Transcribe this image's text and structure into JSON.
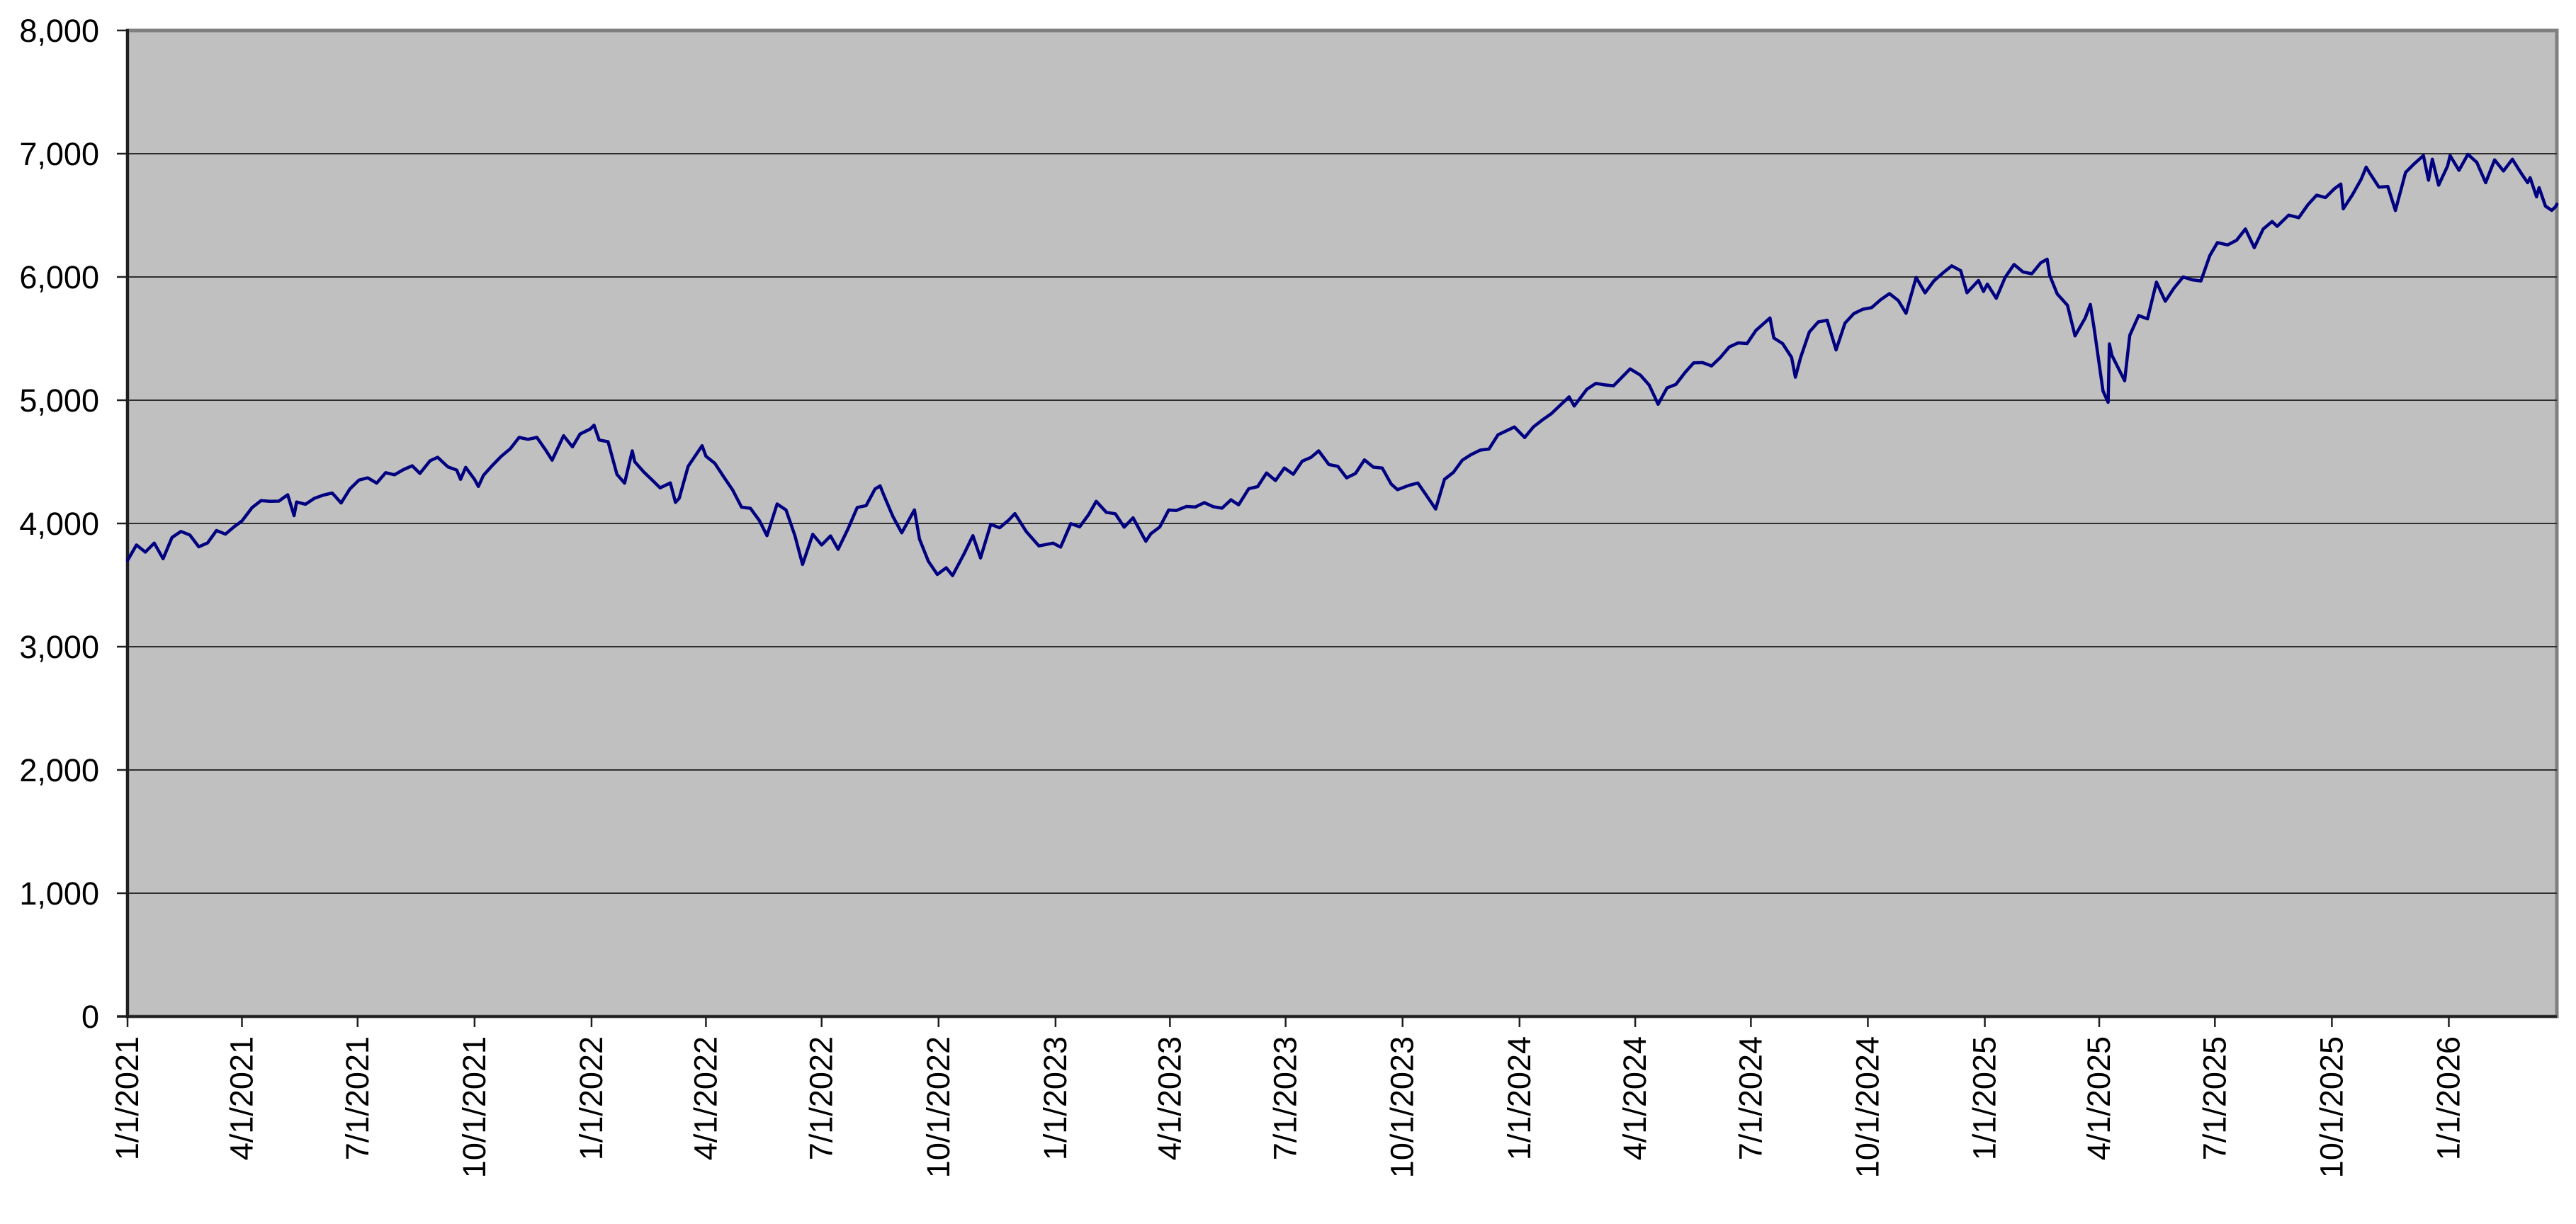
{
  "style": {
    "page_bg": "#ffffff",
    "plot_bg": "#c0c0c0",
    "plot_border": "#808080",
    "grid_color": "#2e2e2e",
    "axis_color": "#1f1f1f",
    "tick_color": "#1f1f1f",
    "label_color": "#000000",
    "line_color": "#000080"
  },
  "chart_data": {
    "type": "line",
    "title": "",
    "legend": "none",
    "grid": "horizontal",
    "x_domain": [
      "1/1/2021",
      "3/27/2026"
    ],
    "ylim": [
      0,
      8000
    ],
    "y_tick_values": [
      0,
      1000,
      2000,
      3000,
      4000,
      5000,
      6000,
      7000,
      8000
    ],
    "y_tick_labels": [
      "0",
      "1,000",
      "2,000",
      "3,000",
      "4,000",
      "5,000",
      "6,000",
      "7,000",
      "8,000"
    ],
    "x_tick_labels": [
      "1/1/2021",
      "4/1/2021",
      "7/1/2021",
      "10/1/2021",
      "1/1/2022",
      "4/1/2022",
      "7/1/2022",
      "10/1/2022",
      "1/1/2023",
      "4/1/2023",
      "7/1/2023",
      "10/1/2023",
      "1/1/2024",
      "4/1/2024",
      "7/1/2024",
      "10/1/2024",
      "1/1/2025",
      "4/1/2025",
      "7/1/2025",
      "10/1/2025",
      "1/1/2026"
    ],
    "points": [
      [
        "1/1/2021",
        3700
      ],
      [
        "1/8/2021",
        3825
      ],
      [
        "1/15/2021",
        3768
      ],
      [
        "1/22/2021",
        3841
      ],
      [
        "1/29/2021",
        3714
      ],
      [
        "2/5/2021",
        3887
      ],
      [
        "2/12/2021",
        3935
      ],
      [
        "2/19/2021",
        3907
      ],
      [
        "2/26/2021",
        3811
      ],
      [
        "3/5/2021",
        3842
      ],
      [
        "3/12/2021",
        3943
      ],
      [
        "3/19/2021",
        3913
      ],
      [
        "3/26/2021",
        3975
      ],
      [
        "4/1/2021",
        4020
      ],
      [
        "4/9/2021",
        4129
      ],
      [
        "4/16/2021",
        4185
      ],
      [
        "4/23/2021",
        4180
      ],
      [
        "4/30/2021",
        4181
      ],
      [
        "5/7/2021",
        4233
      ],
      [
        "5/12/2021",
        4063
      ],
      [
        "5/14/2021",
        4174
      ],
      [
        "5/21/2021",
        4156
      ],
      [
        "5/28/2021",
        4204
      ],
      [
        "6/4/2021",
        4230
      ],
      [
        "6/11/2021",
        4247
      ],
      [
        "6/18/2021",
        4166
      ],
      [
        "6/25/2021",
        4281
      ],
      [
        "7/2/2021",
        4352
      ],
      [
        "7/9/2021",
        4370
      ],
      [
        "7/16/2021",
        4327
      ],
      [
        "7/23/2021",
        4412
      ],
      [
        "7/30/2021",
        4395
      ],
      [
        "8/6/2021",
        4437
      ],
      [
        "8/13/2021",
        4468
      ],
      [
        "8/19/2021",
        4406
      ],
      [
        "8/27/2021",
        4509
      ],
      [
        "9/2/2021",
        4537
      ],
      [
        "9/10/2021",
        4459
      ],
      [
        "9/17/2021",
        4433
      ],
      [
        "9/20/2021",
        4358
      ],
      [
        "9/24/2021",
        4455
      ],
      [
        "10/1/2021",
        4357
      ],
      [
        "10/4/2021",
        4300
      ],
      [
        "10/8/2021",
        4391
      ],
      [
        "10/15/2021",
        4471
      ],
      [
        "10/22/2021",
        4545
      ],
      [
        "10/29/2021",
        4605
      ],
      [
        "11/5/2021",
        4698
      ],
      [
        "11/12/2021",
        4683
      ],
      [
        "11/19/2021",
        4698
      ],
      [
        "11/26/2021",
        4595
      ],
      [
        "12/1/2021",
        4513
      ],
      [
        "12/10/2021",
        4712
      ],
      [
        "12/17/2021",
        4621
      ],
      [
        "12/23/2021",
        4726
      ],
      [
        "12/31/2021",
        4766
      ],
      [
        "1/3/2022",
        4797
      ],
      [
        "1/7/2022",
        4677
      ],
      [
        "1/14/2022",
        4663
      ],
      [
        "1/21/2022",
        4398
      ],
      [
        "1/27/2022",
        4327
      ],
      [
        "2/2/2022",
        4589
      ],
      [
        "2/4/2022",
        4501
      ],
      [
        "2/11/2022",
        4419
      ],
      [
        "2/18/2022",
        4349
      ],
      [
        "2/24/2022",
        4289
      ],
      [
        "3/4/2022",
        4329
      ],
      [
        "3/8/2022",
        4171
      ],
      [
        "3/11/2022",
        4204
      ],
      [
        "3/18/2022",
        4463
      ],
      [
        "3/29/2022",
        4631
      ],
      [
        "4/1/2022",
        4546
      ],
      [
        "4/8/2022",
        4488
      ],
      [
        "4/14/2022",
        4393
      ],
      [
        "4/22/2022",
        4272
      ],
      [
        "4/29/2022",
        4132
      ],
      [
        "5/6/2022",
        4123
      ],
      [
        "5/13/2022",
        4024
      ],
      [
        "5/19/2022",
        3901
      ],
      [
        "5/27/2022",
        4158
      ],
      [
        "6/3/2022",
        4109
      ],
      [
        "6/10/2022",
        3901
      ],
      [
        "6/16/2022",
        3667
      ],
      [
        "6/24/2022",
        3912
      ],
      [
        "7/1/2022",
        3825
      ],
      [
        "7/8/2022",
        3899
      ],
      [
        "7/14/2022",
        3790
      ],
      [
        "7/22/2022",
        3962
      ],
      [
        "7/29/2022",
        4130
      ],
      [
        "8/5/2022",
        4145
      ],
      [
        "8/12/2022",
        4280
      ],
      [
        "8/16/2022",
        4305
      ],
      [
        "8/19/2022",
        4228
      ],
      [
        "8/26/2022",
        4058
      ],
      [
        "9/2/2022",
        3924
      ],
      [
        "9/12/2022",
        4110
      ],
      [
        "9/16/2022",
        3873
      ],
      [
        "9/23/2022",
        3693
      ],
      [
        "9/30/2022",
        3586
      ],
      [
        "10/7/2022",
        3640
      ],
      [
        "10/12/2022",
        3577
      ],
      [
        "10/21/2022",
        3753
      ],
      [
        "10/28/2022",
        3901
      ],
      [
        "11/3/2022",
        3720
      ],
      [
        "11/11/2022",
        3993
      ],
      [
        "11/18/2022",
        3965
      ],
      [
        "11/25/2022",
        4026
      ],
      [
        "11/30/2022",
        4080
      ],
      [
        "12/9/2022",
        3934
      ],
      [
        "12/16/2022",
        3852
      ],
      [
        "12/19/2022",
        3818
      ],
      [
        "12/30/2022",
        3840
      ],
      [
        "1/5/2023",
        3808
      ],
      [
        "1/13/2023",
        3999
      ],
      [
        "1/20/2023",
        3973
      ],
      [
        "1/27/2023",
        4071
      ],
      [
        "2/2/2023",
        4180
      ],
      [
        "2/10/2023",
        4090
      ],
      [
        "2/17/2023",
        4079
      ],
      [
        "2/24/2023",
        3970
      ],
      [
        "3/3/2023",
        4046
      ],
      [
        "3/13/2023",
        3856
      ],
      [
        "3/17/2023",
        3917
      ],
      [
        "3/24/2023",
        3971
      ],
      [
        "3/31/2023",
        4109
      ],
      [
        "4/6/2023",
        4105
      ],
      [
        "4/14/2023",
        4138
      ],
      [
        "4/21/2023",
        4134
      ],
      [
        "4/28/2023",
        4169
      ],
      [
        "5/5/2023",
        4136
      ],
      [
        "5/12/2023",
        4124
      ],
      [
        "5/19/2023",
        4192
      ],
      [
        "5/25/2023",
        4151
      ],
      [
        "6/2/2023",
        4282
      ],
      [
        "6/9/2023",
        4299
      ],
      [
        "6/16/2023",
        4410
      ],
      [
        "6/23/2023",
        4348
      ],
      [
        "6/30/2023",
        4450
      ],
      [
        "7/7/2023",
        4399
      ],
      [
        "7/14/2023",
        4505
      ],
      [
        "7/21/2023",
        4536
      ],
      [
        "7/27/2023",
        4589
      ],
      [
        "8/4/2023",
        4478
      ],
      [
        "8/11/2023",
        4464
      ],
      [
        "8/18/2023",
        4370
      ],
      [
        "8/25/2023",
        4406
      ],
      [
        "9/1/2023",
        4516
      ],
      [
        "9/8/2023",
        4457
      ],
      [
        "9/15/2023",
        4450
      ],
      [
        "9/22/2023",
        4320
      ],
      [
        "9/27/2023",
        4274
      ],
      [
        "10/6/2023",
        4309
      ],
      [
        "10/13/2023",
        4328
      ],
      [
        "10/20/2023",
        4224
      ],
      [
        "10/27/2023",
        4117
      ],
      [
        "11/3/2023",
        4358
      ],
      [
        "11/10/2023",
        4415
      ],
      [
        "11/17/2023",
        4514
      ],
      [
        "11/24/2023",
        4559
      ],
      [
        "12/1/2023",
        4595
      ],
      [
        "12/8/2023",
        4604
      ],
      [
        "12/15/2023",
        4719
      ],
      [
        "12/28/2023",
        4783
      ],
      [
        "1/5/2024",
        4697
      ],
      [
        "1/12/2024",
        4784
      ],
      [
        "1/19/2024",
        4840
      ],
      [
        "1/26/2024",
        4891
      ],
      [
        "2/2/2024",
        4959
      ],
      [
        "2/9/2024",
        5027
      ],
      [
        "2/13/2024",
        4953
      ],
      [
        "2/23/2024",
        5089
      ],
      [
        "3/1/2024",
        5137
      ],
      [
        "3/8/2024",
        5124
      ],
      [
        "3/15/2024",
        5117
      ],
      [
        "3/28/2024",
        5254
      ],
      [
        "4/5/2024",
        5204
      ],
      [
        "4/12/2024",
        5123
      ],
      [
        "4/19/2024",
        4967
      ],
      [
        "4/26/2024",
        5100
      ],
      [
        "5/3/2024",
        5128
      ],
      [
        "5/10/2024",
        5223
      ],
      [
        "5/17/2024",
        5303
      ],
      [
        "5/24/2024",
        5305
      ],
      [
        "5/31/2024",
        5278
      ],
      [
        "6/7/2024",
        5347
      ],
      [
        "6/14/2024",
        5432
      ],
      [
        "6/21/2024",
        5465
      ],
      [
        "6/28/2024",
        5460
      ],
      [
        "7/5/2024",
        5567
      ],
      [
        "7/16/2024",
        5667
      ],
      [
        "7/19/2024",
        5505
      ],
      [
        "7/26/2024",
        5459
      ],
      [
        "8/2/2024",
        5347
      ],
      [
        "8/5/2024",
        5186
      ],
      [
        "8/9/2024",
        5344
      ],
      [
        "8/16/2024",
        5554
      ],
      [
        "8/23/2024",
        5635
      ],
      [
        "8/30/2024",
        5648
      ],
      [
        "9/6/2024",
        5408
      ],
      [
        "9/13/2024",
        5626
      ],
      [
        "9/20/2024",
        5703
      ],
      [
        "9/27/2024",
        5738
      ],
      [
        "10/4/2024",
        5751
      ],
      [
        "10/11/2024",
        5815
      ],
      [
        "10/18/2024",
        5865
      ],
      [
        "10/25/2024",
        5808
      ],
      [
        "10/31/2024",
        5705
      ],
      [
        "11/8/2024",
        5996
      ],
      [
        "11/15/2024",
        5871
      ],
      [
        "11/22/2024",
        5969
      ],
      [
        "11/29/2024",
        6032
      ],
      [
        "12/6/2024",
        6090
      ],
      [
        "12/13/2024",
        6051
      ],
      [
        "12/18/2024",
        5872
      ],
      [
        "12/27/2024",
        5971
      ],
      [
        "12/31/2024",
        5882
      ],
      [
        "1/3/2025",
        5942
      ],
      [
        "1/10/2025",
        5827
      ],
      [
        "1/17/2025",
        5997
      ],
      [
        "1/24/2025",
        6101
      ],
      [
        "1/31/2025",
        6041
      ],
      [
        "2/7/2025",
        6026
      ],
      [
        "2/14/2025",
        6115
      ],
      [
        "2/19/2025",
        6144
      ],
      [
        "2/21/2025",
        6013
      ],
      [
        "2/27/2025",
        5862
      ],
      [
        "3/7/2025",
        5770
      ],
      [
        "3/13/2025",
        5522
      ],
      [
        "3/21/2025",
        5668
      ],
      [
        "3/25/2025",
        5777
      ],
      [
        "3/28/2025",
        5581
      ],
      [
        "4/4/2025",
        5074
      ],
      [
        "4/8/2025",
        4983
      ],
      [
        "4/9/2025",
        5457
      ],
      [
        "4/11/2025",
        5363
      ],
      [
        "4/21/2025",
        5158
      ],
      [
        "4/25/2025",
        5525
      ],
      [
        "5/2/2025",
        5687
      ],
      [
        "5/9/2025",
        5660
      ],
      [
        "5/16/2025",
        5958
      ],
      [
        "5/23/2025",
        5803
      ],
      [
        "5/30/2025",
        5912
      ],
      [
        "6/6/2025",
        6000
      ],
      [
        "6/13/2025",
        5977
      ],
      [
        "6/20/2025",
        5968
      ],
      [
        "6/27/2025",
        6173
      ],
      [
        "7/3/2025",
        6279
      ],
      [
        "7/11/2025",
        6260
      ],
      [
        "7/18/2025",
        6297
      ],
      [
        "7/25/2025",
        6389
      ],
      [
        "8/1/2025",
        6238
      ],
      [
        "8/8/2025",
        6389
      ],
      [
        "8/15/2025",
        6450
      ],
      [
        "8/19/2025",
        6411
      ],
      [
        "8/28/2025",
        6502
      ],
      [
        "9/5/2025",
        6481
      ],
      [
        "9/12/2025",
        6584
      ],
      [
        "9/19/2025",
        6664
      ],
      [
        "9/26/2025",
        6644
      ],
      [
        "10/3/2025",
        6716
      ],
      [
        "10/8/2025",
        6754
      ],
      [
        "10/10/2025",
        6553
      ],
      [
        "10/17/2025",
        6664
      ],
      [
        "10/24/2025",
        6792
      ],
      [
        "10/28/2025",
        6891
      ],
      [
        "10/31/2025",
        6840
      ],
      [
        "11/7/2025",
        6729
      ],
      [
        "11/14/2025",
        6734
      ],
      [
        "11/20/2025",
        6539
      ],
      [
        "11/28/2025",
        6849
      ],
      [
        "12/5/2025",
        6920
      ],
      [
        "12/12/2025",
        6985
      ],
      [
        "12/16/2025",
        6785
      ],
      [
        "12/19/2025",
        6955
      ],
      [
        "12/24/2025",
        6745
      ],
      [
        "12/31/2025",
        6900
      ],
      [
        "1/2/2026",
        6985
      ],
      [
        "1/9/2026",
        6865
      ],
      [
        "1/16/2026",
        6995
      ],
      [
        "1/23/2026",
        6930
      ],
      [
        "1/30/2026",
        6765
      ],
      [
        "2/6/2026",
        6950
      ],
      [
        "2/13/2026",
        6860
      ],
      [
        "2/20/2026",
        6955
      ],
      [
        "2/27/2026",
        6840
      ],
      [
        "3/4/2026",
        6765
      ],
      [
        "3/6/2026",
        6805
      ],
      [
        "3/11/2026",
        6650
      ],
      [
        "3/13/2026",
        6725
      ],
      [
        "3/18/2026",
        6575
      ],
      [
        "3/23/2026",
        6540
      ],
      [
        "3/26/2026",
        6570
      ],
      [
        "3/27/2026",
        6590
      ]
    ]
  }
}
